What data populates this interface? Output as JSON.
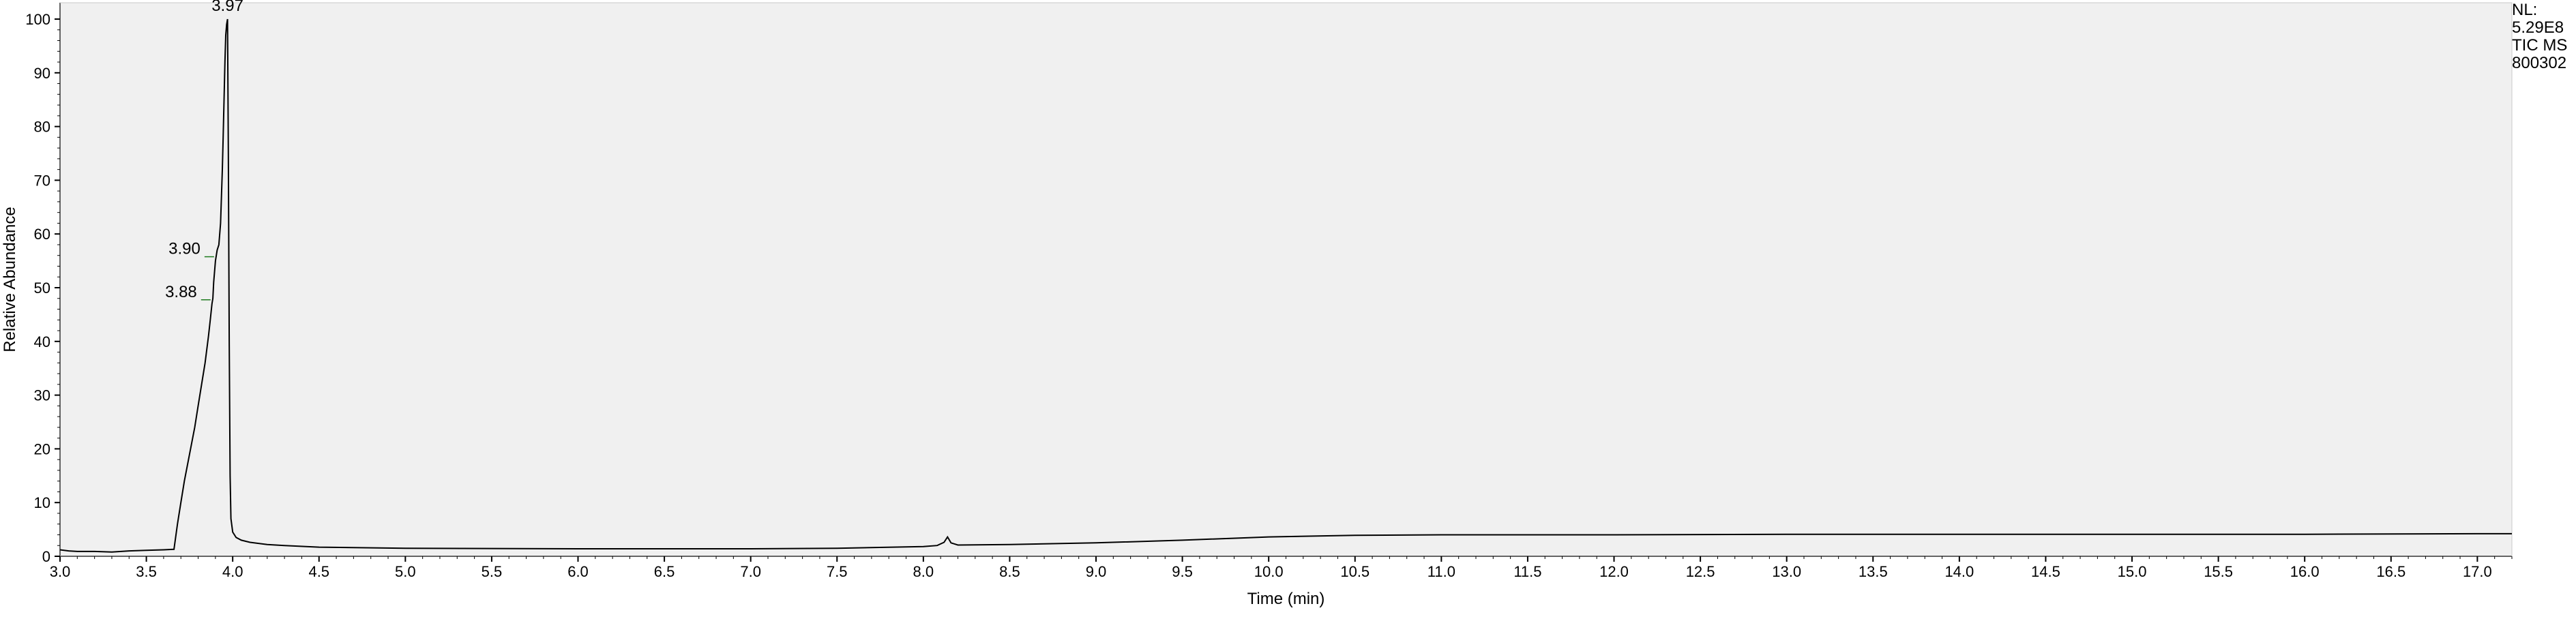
{
  "info": {
    "line1": "NL:",
    "line2": "5.29E8",
    "line3": "TIC  MS",
    "line4": "800302"
  },
  "chart_data": {
    "type": "line",
    "title": "",
    "xlabel": "Time (min)",
    "ylabel": "Relative Abundance",
    "xlim": [
      3.0,
      17.2
    ],
    "ylim": [
      0,
      100
    ],
    "grid": false,
    "legend": "none",
    "plot_background": "#f0f0f0",
    "line_color": "#000000",
    "annotation_color": "#1f7a1f",
    "x_ticks": [
      "3.0",
      "3.5",
      "4.0",
      "4.5",
      "5.0",
      "5.5",
      "6.0",
      "6.5",
      "7.0",
      "7.5",
      "8.0",
      "8.5",
      "9.0",
      "9.5",
      "10.0",
      "10.5",
      "11.0",
      "11.5",
      "12.0",
      "12.5",
      "13.0",
      "13.5",
      "14.0",
      "14.5",
      "15.0",
      "15.5",
      "16.0",
      "16.5",
      "17.0"
    ],
    "y_ticks": [
      "0",
      "10",
      "20",
      "30",
      "40",
      "50",
      "60",
      "70",
      "80",
      "90",
      "100"
    ],
    "peak_labels": [
      {
        "text": "3.97",
        "x": 3.97,
        "y": 100
      },
      {
        "text": "3.90",
        "x": 3.9,
        "y": 55
      },
      {
        "text": "3.88",
        "x": 3.88,
        "y": 48
      }
    ],
    "series": [
      {
        "x": [
          3.0,
          3.05,
          3.1,
          3.2,
          3.3,
          3.4,
          3.5,
          3.6,
          3.66,
          3.68,
          3.7,
          3.72,
          3.75,
          3.78,
          3.8,
          3.82,
          3.84,
          3.86,
          3.87,
          3.88,
          3.885,
          3.89,
          3.9,
          3.91,
          3.92,
          3.93,
          3.935,
          3.94,
          3.945,
          3.95,
          3.955,
          3.96,
          3.965,
          3.97,
          3.975,
          3.98,
          3.985,
          3.99,
          4.0,
          4.02,
          4.05,
          4.1,
          4.2,
          4.3,
          4.5,
          5.0,
          6.0,
          7.0,
          7.5,
          8.0,
          8.08,
          8.12,
          8.14,
          8.16,
          8.2,
          8.5,
          9.0,
          9.5,
          10.0,
          10.5,
          11.0,
          12.0,
          13.0,
          14.0,
          15.0,
          16.0,
          17.0,
          17.2
        ],
        "y": [
          1.2,
          1.0,
          0.9,
          0.9,
          0.8,
          1.0,
          1.1,
          1.2,
          1.3,
          6,
          10,
          14,
          19,
          24,
          28,
          32,
          36,
          41,
          44,
          47,
          48,
          51,
          55,
          57,
          58,
          62,
          67,
          72,
          78,
          85,
          92,
          97,
          99,
          100,
          75,
          40,
          15,
          7,
          4.5,
          3.5,
          3.0,
          2.6,
          2.2,
          2.0,
          1.7,
          1.5,
          1.4,
          1.4,
          1.5,
          1.8,
          2.0,
          2.6,
          3.6,
          2.5,
          2.1,
          2.2,
          2.5,
          3.0,
          3.6,
          3.9,
          4.0,
          4.0,
          4.1,
          4.1,
          4.1,
          4.1,
          4.2,
          4.2
        ]
      }
    ]
  }
}
